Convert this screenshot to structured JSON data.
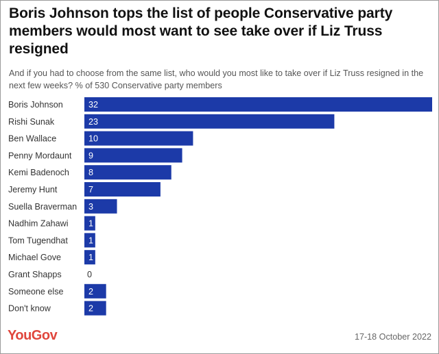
{
  "chart_data": {
    "type": "bar",
    "orientation": "horizontal",
    "title": "Boris Johnson tops the list of people Conservative party members would most want to see take over if Liz Truss resigned",
    "subtitle": "And if you had to choose from the same list, who would you most like to take over if Liz Truss resigned in the next few weeks? % of 530 Conservative party members",
    "categories": [
      "Boris Johnson",
      "Rishi Sunak",
      "Ben Wallace",
      "Penny Mordaunt",
      "Kemi Badenoch",
      "Jeremy Hunt",
      "Suella Braverman",
      "Nadhim Zahawi",
      "Tom Tugendhat",
      "Michael Gove",
      "Grant Shapps",
      "Someone else",
      "Don't know"
    ],
    "values": [
      32,
      23,
      10,
      9,
      8,
      7,
      3,
      1,
      1,
      1,
      0,
      2,
      2
    ],
    "xlim": [
      0,
      32
    ],
    "bar_color": "#1c3aa8",
    "grid": false,
    "legend": "none"
  },
  "footer": {
    "brand": "YouGov",
    "brand_color": "#e0463c",
    "date": "17-18 October 2022"
  }
}
